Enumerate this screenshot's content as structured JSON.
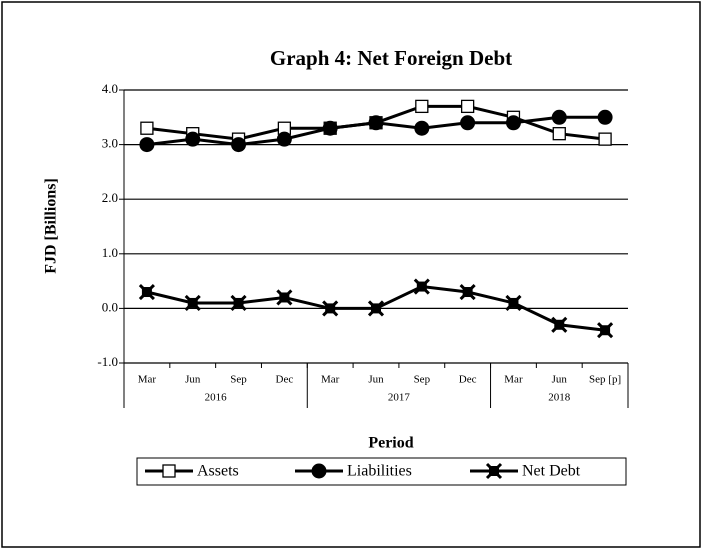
{
  "chart_data": {
    "type": "line",
    "title": "Graph 4: Net Foreign Debt",
    "y_label": "FJD [Billions]",
    "x_label": "Period",
    "categories": [
      "Mar",
      "Jun",
      "Sep",
      "Dec",
      "Mar",
      "Jun",
      "Sep",
      "Dec",
      "Mar",
      "Jun",
      "Sep [p]"
    ],
    "category_groups": [
      "2016",
      null,
      null,
      null,
      "2017",
      null,
      null,
      null,
      "2018",
      null,
      null
    ],
    "ylim": [
      -1.0,
      4.0
    ],
    "yticks": [
      {
        "value": -1,
        "label": "-1.0"
      },
      {
        "value": 0,
        "label": "0.0"
      },
      {
        "value": 1,
        "label": "1.0"
      },
      {
        "value": 2,
        "label": "2.0"
      },
      {
        "value": 3,
        "label": "3.0"
      },
      {
        "value": 4,
        "label": "4.0"
      }
    ],
    "grid": true,
    "legend": "bottom",
    "series": [
      {
        "name": "Assets",
        "color": "#000000",
        "marker": "square-open",
        "values": [
          3.3,
          3.2,
          3.1,
          3.3,
          3.3,
          3.4,
          3.7,
          3.7,
          3.5,
          3.2,
          3.1
        ]
      },
      {
        "name": "Liabilities",
        "color": "#000000",
        "marker": "circle",
        "values": [
          3.0,
          3.1,
          3.0,
          3.1,
          3.3,
          3.4,
          3.3,
          3.4,
          3.4,
          3.5,
          3.5
        ]
      },
      {
        "name": "Net Debt",
        "color": "#000000",
        "marker": "x-square",
        "values": [
          0.3,
          0.1,
          0.1,
          0.2,
          0.0,
          0.0,
          0.4,
          0.3,
          0.1,
          -0.3,
          -0.4
        ]
      }
    ]
  }
}
